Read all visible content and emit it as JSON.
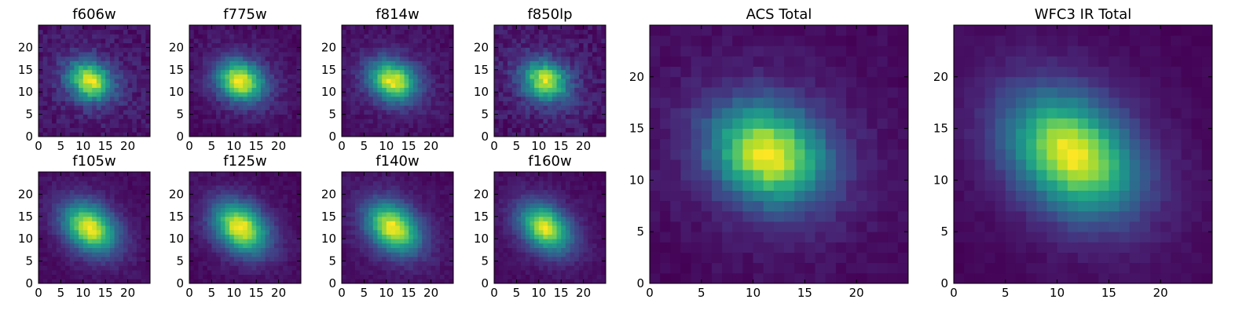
{
  "chart_data": [
    {
      "type": "heatmap",
      "title": "f606w",
      "xlim": [
        0,
        25
      ],
      "ylim": [
        0,
        25
      ],
      "xticks": [
        0,
        5,
        10,
        15,
        20
      ],
      "yticks": [
        0,
        5,
        10,
        15,
        20
      ],
      "grid": false,
      "legend": "none",
      "colormap": "viridis",
      "center": [
        11.5,
        12.5
      ],
      "sigma_x": 3.6,
      "sigma_y": 2.9,
      "tilt_deg": -30,
      "background": 0.18,
      "noise": 0.1
    },
    {
      "type": "heatmap",
      "title": "f775w",
      "xlim": [
        0,
        25
      ],
      "ylim": [
        0,
        25
      ],
      "xticks": [
        0,
        5,
        10,
        15,
        20
      ],
      "yticks": [
        0,
        5,
        10,
        15,
        20
      ],
      "grid": false,
      "legend": "none",
      "colormap": "viridis",
      "center": [
        11.5,
        12.5
      ],
      "sigma_x": 3.8,
      "sigma_y": 3.0,
      "tilt_deg": -25,
      "background": 0.14,
      "noise": 0.07
    },
    {
      "type": "heatmap",
      "title": "f814w",
      "xlim": [
        0,
        25
      ],
      "ylim": [
        0,
        25
      ],
      "xticks": [
        0,
        5,
        10,
        15,
        20
      ],
      "yticks": [
        0,
        5,
        10,
        15,
        20
      ],
      "grid": false,
      "legend": "none",
      "colormap": "viridis",
      "center": [
        11.5,
        12.5
      ],
      "sigma_x": 3.8,
      "sigma_y": 3.0,
      "tilt_deg": -25,
      "background": 0.14,
      "noise": 0.07
    },
    {
      "type": "heatmap",
      "title": "f850lp",
      "xlim": [
        0,
        25
      ],
      "ylim": [
        0,
        25
      ],
      "xticks": [
        0,
        5,
        10,
        15,
        20
      ],
      "yticks": [
        0,
        5,
        10,
        15,
        20
      ],
      "grid": false,
      "legend": "none",
      "colormap": "viridis",
      "center": [
        11.5,
        12.5
      ],
      "sigma_x": 3.7,
      "sigma_y": 3.0,
      "tilt_deg": -25,
      "background": 0.15,
      "noise": 0.11
    },
    {
      "type": "heatmap",
      "title": "f105w",
      "xlim": [
        0,
        25
      ],
      "ylim": [
        0,
        25
      ],
      "xticks": [
        0,
        5,
        10,
        15,
        20
      ],
      "yticks": [
        0,
        5,
        10,
        15,
        20
      ],
      "grid": false,
      "legend": "none",
      "colormap": "viridis",
      "center": [
        11.5,
        12.5
      ],
      "sigma_x": 4.6,
      "sigma_y": 3.3,
      "tilt_deg": -40,
      "background": 0.08,
      "noise": 0.05
    },
    {
      "type": "heatmap",
      "title": "f125w",
      "xlim": [
        0,
        25
      ],
      "ylim": [
        0,
        25
      ],
      "xticks": [
        0,
        5,
        10,
        15,
        20
      ],
      "yticks": [
        0,
        5,
        10,
        15,
        20
      ],
      "grid": false,
      "legend": "none",
      "colormap": "viridis",
      "center": [
        11.5,
        12.5
      ],
      "sigma_x": 4.7,
      "sigma_y": 3.4,
      "tilt_deg": -40,
      "background": 0.08,
      "noise": 0.05
    },
    {
      "type": "heatmap",
      "title": "f140w",
      "xlim": [
        0,
        25
      ],
      "ylim": [
        0,
        25
      ],
      "xticks": [
        0,
        5,
        10,
        15,
        20
      ],
      "yticks": [
        0,
        5,
        10,
        15,
        20
      ],
      "grid": false,
      "legend": "none",
      "colormap": "viridis",
      "center": [
        11.5,
        12.5
      ],
      "sigma_x": 4.6,
      "sigma_y": 3.3,
      "tilt_deg": -40,
      "background": 0.08,
      "noise": 0.05
    },
    {
      "type": "heatmap",
      "title": "f160w",
      "xlim": [
        0,
        25
      ],
      "ylim": [
        0,
        25
      ],
      "xticks": [
        0,
        5,
        10,
        15,
        20
      ],
      "yticks": [
        0,
        5,
        10,
        15,
        20
      ],
      "grid": false,
      "legend": "none",
      "colormap": "viridis",
      "center": [
        11.5,
        12.5
      ],
      "sigma_x": 4.4,
      "sigma_y": 3.1,
      "tilt_deg": -40,
      "background": 0.08,
      "noise": 0.05
    },
    {
      "type": "heatmap",
      "title": "ACS Total",
      "xlim": [
        0,
        25
      ],
      "ylim": [
        0,
        25
      ],
      "xticks": [
        0,
        5,
        10,
        15,
        20
      ],
      "yticks": [
        0,
        5,
        10,
        15,
        20
      ],
      "grid": false,
      "legend": "none",
      "colormap": "viridis",
      "center": [
        11.5,
        12.5
      ],
      "sigma_x": 4.0,
      "sigma_y": 3.2,
      "tilt_deg": -25,
      "background": 0.15,
      "noise": 0.05
    },
    {
      "type": "heatmap",
      "title": "WFC3 IR Total",
      "xlim": [
        0,
        25
      ],
      "ylim": [
        0,
        25
      ],
      "xticks": [
        0,
        5,
        10,
        15,
        20
      ],
      "yticks": [
        0,
        5,
        10,
        15,
        20
      ],
      "grid": false,
      "legend": "none",
      "colormap": "viridis",
      "center": [
        11.5,
        12.5
      ],
      "sigma_x": 4.7,
      "sigma_y": 3.4,
      "tilt_deg": -40,
      "background": 0.06,
      "noise": 0.03
    }
  ]
}
